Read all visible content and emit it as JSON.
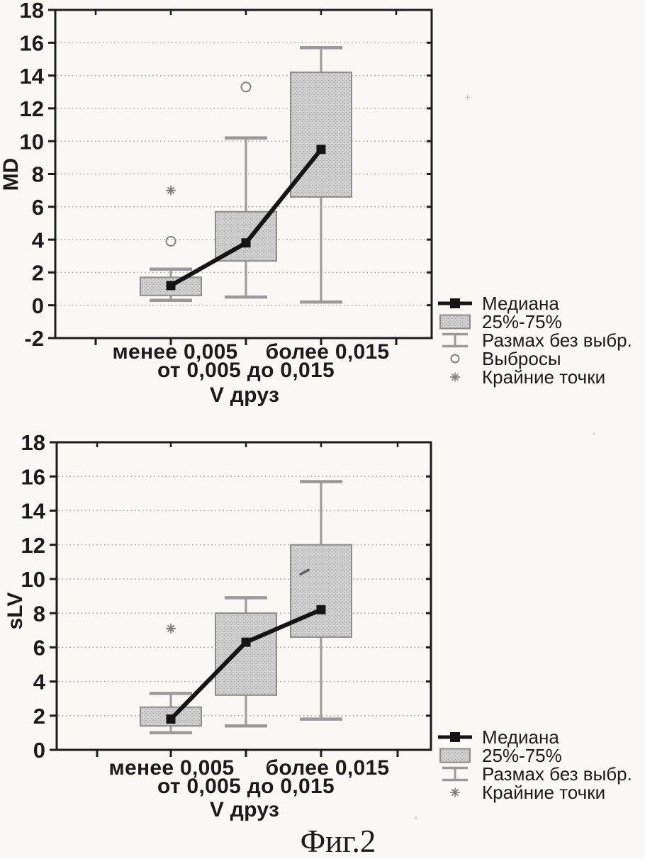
{
  "page": {
    "caption": "Фиг.2",
    "background": "#f9f8f5"
  },
  "colors": {
    "frame": "#1c1c1c",
    "grid": "#b3b3b3",
    "box_fill": "#d4d4d4",
    "box_dot": "#a9a9a9",
    "box_border": "#8c8c8c",
    "whisker": "#9a9a9a",
    "median": "#151515",
    "outlier": "#828282",
    "extreme": "#7e7e7e",
    "text": "#1b1b1b"
  },
  "chart_data": [
    {
      "type": "box",
      "title": "",
      "ylabel": "MD",
      "xlabel": "V друз",
      "ylim": [
        -2,
        18
      ],
      "ytick_step": 2,
      "grid": "horizontal-dotted",
      "legend_position": "right-bottom",
      "categories": [
        "менее 0,005",
        "от 0,005 до 0,015",
        "более 0,015"
      ],
      "groups": [
        {
          "category": "менее 0,005",
          "whisker_low": 0.3,
          "q1": 0.6,
          "median": 1.2,
          "q3": 1.7,
          "whisker_high": 2.2,
          "outliers": [
            3.9
          ],
          "extremes": [
            7.0
          ]
        },
        {
          "category": "от 0,005 до 0,015",
          "whisker_low": 0.5,
          "q1": 2.7,
          "median": 3.8,
          "q3": 5.7,
          "whisker_high": 10.2,
          "outliers": [
            13.3
          ],
          "extremes": []
        },
        {
          "category": "более 0,015",
          "whisker_low": 0.2,
          "q1": 6.6,
          "median": 9.5,
          "q3": 14.2,
          "whisker_high": 15.7,
          "outliers": [],
          "extremes": []
        }
      ],
      "legend": [
        {
          "marker": "median-line",
          "label": "Медиана"
        },
        {
          "marker": "box",
          "label": "25%-75%"
        },
        {
          "marker": "whisker",
          "label": "Размах без выбр."
        },
        {
          "marker": "outlier-circle",
          "label": "Выбросы"
        },
        {
          "marker": "extreme-star",
          "label": "Крайние точки"
        }
      ]
    },
    {
      "type": "box",
      "title": "",
      "ylabel": "sLV",
      "xlabel": "V друз",
      "ylim": [
        0,
        18
      ],
      "ytick_step": 2,
      "grid": "horizontal-dotted",
      "legend_position": "right-bottom",
      "categories": [
        "менее 0,005",
        "от 0,005 до 0,015",
        "более 0,015"
      ],
      "groups": [
        {
          "category": "менее 0,005",
          "whisker_low": 1.0,
          "q1": 1.4,
          "median": 1.8,
          "q3": 2.5,
          "whisker_high": 3.3,
          "outliers": [],
          "extremes": [
            7.1
          ]
        },
        {
          "category": "от 0,005 до 0,015",
          "whisker_low": 1.4,
          "q1": 3.2,
          "median": 6.3,
          "q3": 8.0,
          "whisker_high": 8.9,
          "outliers": [],
          "extremes": []
        },
        {
          "category": "более 0,015",
          "whisker_low": 1.8,
          "q1": 6.6,
          "median": 8.2,
          "q3": 12.0,
          "whisker_high": 15.7,
          "outliers": [],
          "extremes": [],
          "stray_mark": 10.4
        }
      ],
      "legend": [
        {
          "marker": "median-line",
          "label": "Медиана"
        },
        {
          "marker": "box",
          "label": "25%-75%"
        },
        {
          "marker": "whisker",
          "label": "Размах без выбр."
        },
        {
          "marker": "extreme-star",
          "label": "Крайние точки"
        }
      ]
    }
  ]
}
